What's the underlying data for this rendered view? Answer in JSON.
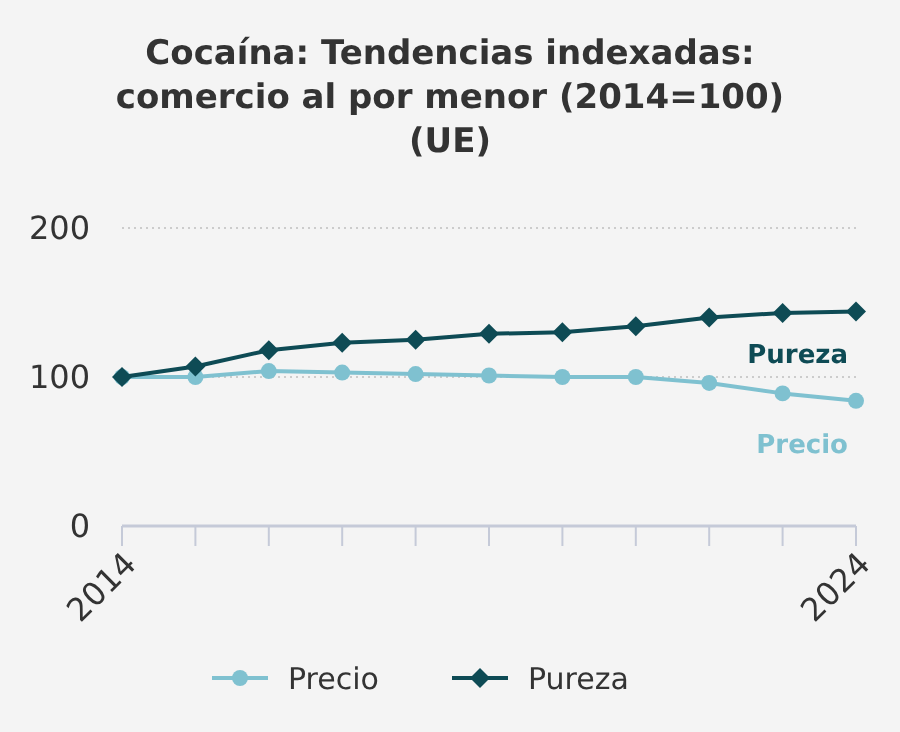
{
  "chart_data": {
    "type": "line",
    "title": "Cocaína: Tendencias indexadas: comercio al por menor (2014=100) (UE)",
    "x": [
      2014,
      2015,
      2016,
      2017,
      2018,
      2019,
      2020,
      2021,
      2022,
      2023,
      2024
    ],
    "xlim": [
      2014,
      2024
    ],
    "xticks": [
      2014,
      {
        "value": 2015,
        "label": null
      },
      {
        "value": 2016,
        "label": null
      },
      {
        "value": 2017,
        "label": null
      },
      {
        "value": 2018,
        "label": null
      },
      {
        "value": 2019,
        "label": null
      },
      {
        "value": 2020,
        "label": null
      },
      {
        "value": 2021,
        "label": null
      },
      {
        "value": 2022,
        "label": null
      },
      {
        "value": 2023,
        "label": null
      },
      2024
    ],
    "ylim": [
      0,
      200
    ],
    "yticks": [
      0,
      100,
      200
    ],
    "grid": "y",
    "legend": "bottom",
    "series": [
      {
        "name": "Precio",
        "color": "#7fc1d0",
        "marker": "circle",
        "values": [
          100,
          100,
          104,
          103,
          102,
          101,
          100,
          100,
          96,
          89,
          84
        ]
      },
      {
        "name": "Pureza",
        "color": "#0e4b55",
        "marker": "diamond",
        "values": [
          100,
          107,
          118,
          123,
          125,
          129,
          130,
          134,
          140,
          143,
          144
        ]
      }
    ]
  }
}
